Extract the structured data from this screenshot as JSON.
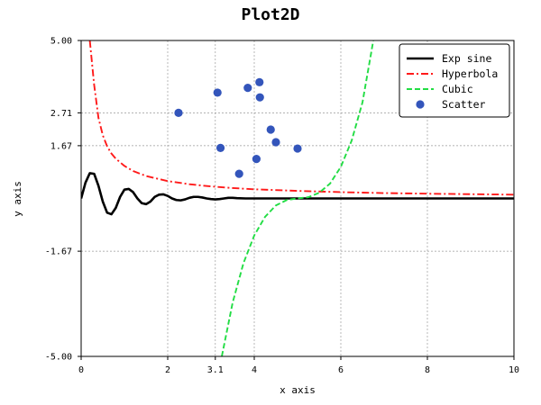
{
  "chart_data": {
    "type": "line",
    "title": "Plot2D",
    "xlabel": "x axis",
    "ylabel": "y axis",
    "xlim": [
      0,
      10
    ],
    "ylim": [
      -5,
      5
    ],
    "x_ticks": [
      0,
      2,
      3.1,
      4,
      6,
      8,
      10
    ],
    "x_tick_labels": [
      "0",
      "2",
      "3.1",
      "4",
      "6",
      "8",
      "10"
    ],
    "y_ticks": [
      -5,
      -1.67,
      1.67,
      2.71,
      5
    ],
    "y_tick_labels": [
      "-5.00",
      "-1.67",
      "1.67",
      "2.71",
      "5.00"
    ],
    "grid": true,
    "legend_position": "top-right",
    "series": [
      {
        "name": "Exp sine",
        "kind": "line",
        "color": "#000000",
        "dash": "solid",
        "points": [
          [
            0,
            0.0
          ],
          [
            0.1,
            0.5
          ],
          [
            0.2,
            0.8
          ],
          [
            0.3,
            0.78
          ],
          [
            0.4,
            0.4
          ],
          [
            0.5,
            -0.1
          ],
          [
            0.6,
            -0.45
          ],
          [
            0.7,
            -0.5
          ],
          [
            0.8,
            -0.3
          ],
          [
            0.9,
            0.05
          ],
          [
            1.0,
            0.28
          ],
          [
            1.1,
            0.3
          ],
          [
            1.2,
            0.2
          ],
          [
            1.3,
            0.0
          ],
          [
            1.4,
            -0.15
          ],
          [
            1.5,
            -0.18
          ],
          [
            1.6,
            -0.1
          ],
          [
            1.7,
            0.05
          ],
          [
            1.8,
            0.12
          ],
          [
            1.9,
            0.13
          ],
          [
            2.0,
            0.08
          ],
          [
            2.1,
            0.0
          ],
          [
            2.2,
            -0.05
          ],
          [
            2.3,
            -0.06
          ],
          [
            2.4,
            -0.03
          ],
          [
            2.5,
            0.02
          ],
          [
            2.6,
            0.05
          ],
          [
            2.7,
            0.05
          ],
          [
            2.8,
            0.03
          ],
          [
            2.9,
            0.0
          ],
          [
            3.0,
            -0.02
          ],
          [
            3.1,
            -0.03
          ],
          [
            3.2,
            -0.02
          ],
          [
            3.3,
            0.0
          ],
          [
            3.4,
            0.02
          ],
          [
            3.5,
            0.02
          ],
          [
            3.6,
            0.01
          ],
          [
            3.8,
            0.0
          ],
          [
            4.0,
            0.0
          ],
          [
            10,
            0.0
          ]
        ]
      },
      {
        "name": "Hyperbola",
        "kind": "line",
        "color": "#ff1a1a",
        "dash": "dashdot",
        "points": [
          [
            0.2,
            5.0
          ],
          [
            0.3,
            3.6
          ],
          [
            0.4,
            2.55
          ],
          [
            0.5,
            2.0
          ],
          [
            0.6,
            1.65
          ],
          [
            0.7,
            1.42
          ],
          [
            0.8,
            1.26
          ],
          [
            1.0,
            1.03
          ],
          [
            1.2,
            0.87
          ],
          [
            1.5,
            0.71
          ],
          [
            2.0,
            0.55
          ],
          [
            2.5,
            0.45
          ],
          [
            3.0,
            0.38
          ],
          [
            3.5,
            0.33
          ],
          [
            4.0,
            0.29
          ],
          [
            5.0,
            0.24
          ],
          [
            6.0,
            0.2
          ],
          [
            7.0,
            0.17
          ],
          [
            8.0,
            0.15
          ],
          [
            9.0,
            0.135
          ],
          [
            10.0,
            0.12
          ]
        ]
      },
      {
        "name": "Cubic",
        "kind": "line",
        "color": "#22dd44",
        "dash": "dashed",
        "points": [
          [
            3.25,
            -5.0
          ],
          [
            3.5,
            -3.3
          ],
          [
            3.75,
            -2.05
          ],
          [
            4.0,
            -1.17
          ],
          [
            4.25,
            -0.58
          ],
          [
            4.5,
            -0.22
          ],
          [
            4.75,
            -0.05
          ],
          [
            5.0,
            0.0
          ],
          [
            5.25,
            0.04
          ],
          [
            5.5,
            0.18
          ],
          [
            5.75,
            0.47
          ],
          [
            6.0,
            1.0
          ],
          [
            6.25,
            1.83
          ],
          [
            6.5,
            3.04
          ],
          [
            6.7,
            4.6
          ],
          [
            6.75,
            5.0
          ]
        ]
      },
      {
        "name": "Scatter",
        "kind": "scatter",
        "color": "#3355bb",
        "points": [
          [
            2.25,
            2.71
          ],
          [
            3.15,
            3.35
          ],
          [
            3.22,
            1.6
          ],
          [
            3.65,
            0.78
          ],
          [
            3.85,
            3.5
          ],
          [
            4.05,
            1.25
          ],
          [
            4.12,
            3.68
          ],
          [
            4.13,
            3.2
          ],
          [
            4.38,
            2.18
          ],
          [
            4.5,
            1.78
          ],
          [
            5.0,
            1.58
          ]
        ]
      }
    ]
  }
}
